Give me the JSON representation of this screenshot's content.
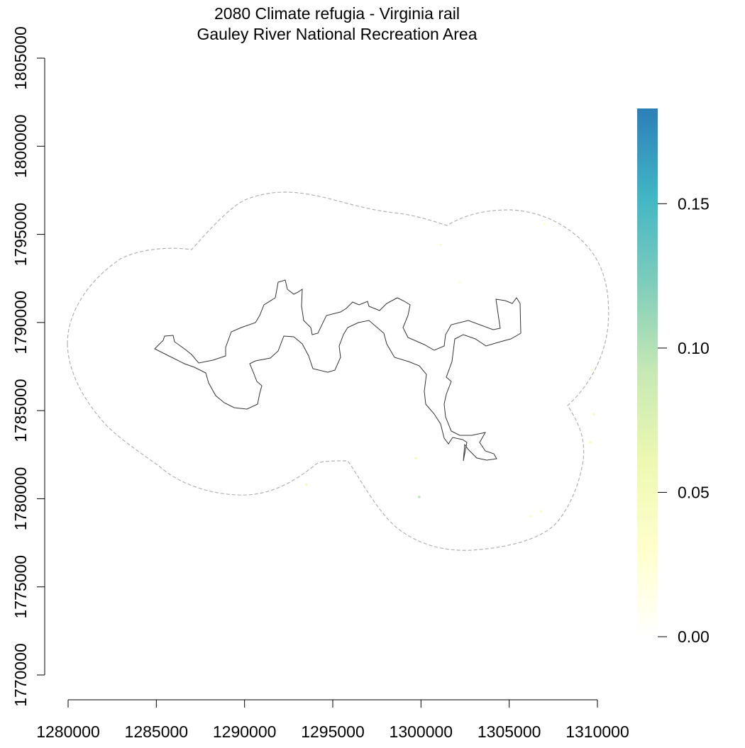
{
  "title_line1": "2080 Climate refugia - Virginia rail",
  "title_line2": "Gauley River National Recreation Area",
  "map": {
    "x_ticks": [
      1280000,
      1285000,
      1290000,
      1295000,
      1300000,
      1305000,
      1310000
    ],
    "y_ticks": [
      1770000,
      1775000,
      1780000,
      1785000,
      1790000,
      1795000,
      1800000,
      1805000
    ],
    "xlim": [
      1280000,
      1310000
    ],
    "ylim": [
      1770000,
      1805000
    ],
    "park_boundary_color": "#333333",
    "buffer_boundary_color": "#b0b0b0",
    "x_tick_labels": [
      "1280000",
      "1285000",
      "1290000",
      "1295000",
      "1300000",
      "1305000",
      "1310000"
    ],
    "y_tick_labels": [
      "1770000",
      "1775000",
      "1780000",
      "1785000",
      "1790000",
      "1795000",
      "1800000",
      "1805000"
    ]
  },
  "legend": {
    "min": 0.0,
    "max": 0.183,
    "ticks": [
      0.0,
      0.05,
      0.1,
      0.15
    ],
    "tick_labels": [
      "0.00",
      "0.05",
      "0.10",
      "0.15"
    ],
    "colors": [
      "#ffffff",
      "#ffffcc",
      "#edf8b1",
      "#c7e9b4",
      "#7fcdbb",
      "#41b6c4",
      "#2c7fb8"
    ]
  },
  "refugia_cells": [
    {
      "x": 1299900,
      "y": 1780100,
      "value": 0.1
    },
    {
      "x": 1299700,
      "y": 1782300,
      "value": 0.05
    },
    {
      "x": 1293500,
      "y": 1780800,
      "value": 0.05
    },
    {
      "x": 1306800,
      "y": 1779300,
      "value": 0.04
    },
    {
      "x": 1306200,
      "y": 1779000,
      "value": 0.04
    },
    {
      "x": 1309600,
      "y": 1783200,
      "value": 0.05
    },
    {
      "x": 1309800,
      "y": 1784800,
      "value": 0.04
    },
    {
      "x": 1309700,
      "y": 1787300,
      "value": 0.04
    },
    {
      "x": 1302200,
      "y": 1792300,
      "value": 0.03
    },
    {
      "x": 1301100,
      "y": 1794400,
      "value": 0.03
    },
    {
      "x": 1307000,
      "y": 1795600,
      "value": 0.03
    }
  ]
}
